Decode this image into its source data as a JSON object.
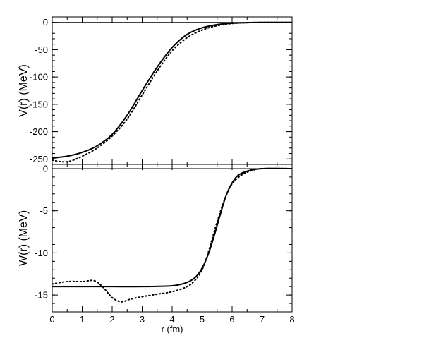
{
  "chart_data": [
    {
      "type": "line",
      "ylabel": "V(r) (MeV)",
      "xlim": [
        0,
        8
      ],
      "ylim": [
        -260,
        10
      ],
      "yticks": [
        0,
        -50,
        -100,
        -150,
        -200,
        -250
      ],
      "yminor_step": 10,
      "reference_line_y": 0,
      "series": [
        {
          "style": "solid",
          "x": [
            0,
            0.5,
            1.0,
            1.5,
            2.0,
            2.5,
            3.0,
            3.5,
            4.0,
            4.5,
            5.0,
            5.5,
            6.0,
            6.5,
            7.0,
            7.5,
            8.0
          ],
          "y": [
            -248,
            -245,
            -238,
            -226,
            -205,
            -170,
            -125,
            -82,
            -46,
            -22,
            -10,
            -4,
            -1.5,
            -0.5,
            0,
            0,
            0
          ]
        },
        {
          "style": "dotted",
          "x": [
            0,
            0.3,
            0.6,
            1.0,
            1.5,
            2.0,
            2.5,
            3.0,
            3.5,
            4.0,
            4.5,
            5.0,
            5.5,
            6.0,
            6.5,
            7.0,
            7.5,
            8.0
          ],
          "y": [
            -252,
            -255,
            -254,
            -245,
            -230,
            -208,
            -177,
            -133,
            -89,
            -52,
            -28,
            -14,
            -6,
            -2,
            -0.5,
            0,
            0,
            0
          ]
        }
      ]
    },
    {
      "type": "line",
      "xlabel": "r (fm)",
      "ylabel": "W(r) (MeV)",
      "xlim": [
        0,
        8
      ],
      "ylim": [
        -17,
        0.5
      ],
      "yticks": [
        0,
        -5,
        -10,
        -15
      ],
      "yminor_step": 1,
      "reference_line_y": 0,
      "xticks": [
        0,
        1,
        2,
        3,
        4,
        5,
        6,
        7,
        8
      ],
      "series": [
        {
          "style": "solid",
          "x": [
            0,
            1.0,
            2.0,
            3.0,
            4.0,
            4.5,
            4.8,
            5.0,
            5.2,
            5.4,
            5.6,
            5.8,
            6.0,
            6.2,
            6.5,
            7.0,
            8.0
          ],
          "y": [
            -14.0,
            -14.0,
            -14.0,
            -14.0,
            -13.9,
            -13.5,
            -12.8,
            -11.8,
            -10.2,
            -8.0,
            -5.5,
            -3.2,
            -1.7,
            -0.8,
            -0.3,
            0,
            0
          ]
        },
        {
          "style": "dotted",
          "x": [
            0,
            0.5,
            1.0,
            1.4,
            1.7,
            2.0,
            2.3,
            2.6,
            3.0,
            3.5,
            4.0,
            4.5,
            4.8,
            5.0,
            5.2,
            5.4,
            5.6,
            5.8,
            6.0,
            6.3,
            6.6,
            7.0,
            8.0
          ],
          "y": [
            -13.7,
            -13.4,
            -13.4,
            -13.3,
            -14.1,
            -15.3,
            -15.8,
            -15.5,
            -15.2,
            -14.9,
            -14.6,
            -14.0,
            -13.1,
            -12.0,
            -10.0,
            -7.5,
            -5.2,
            -3.2,
            -1.8,
            -0.8,
            -0.3,
            0,
            0
          ]
        }
      ]
    }
  ]
}
